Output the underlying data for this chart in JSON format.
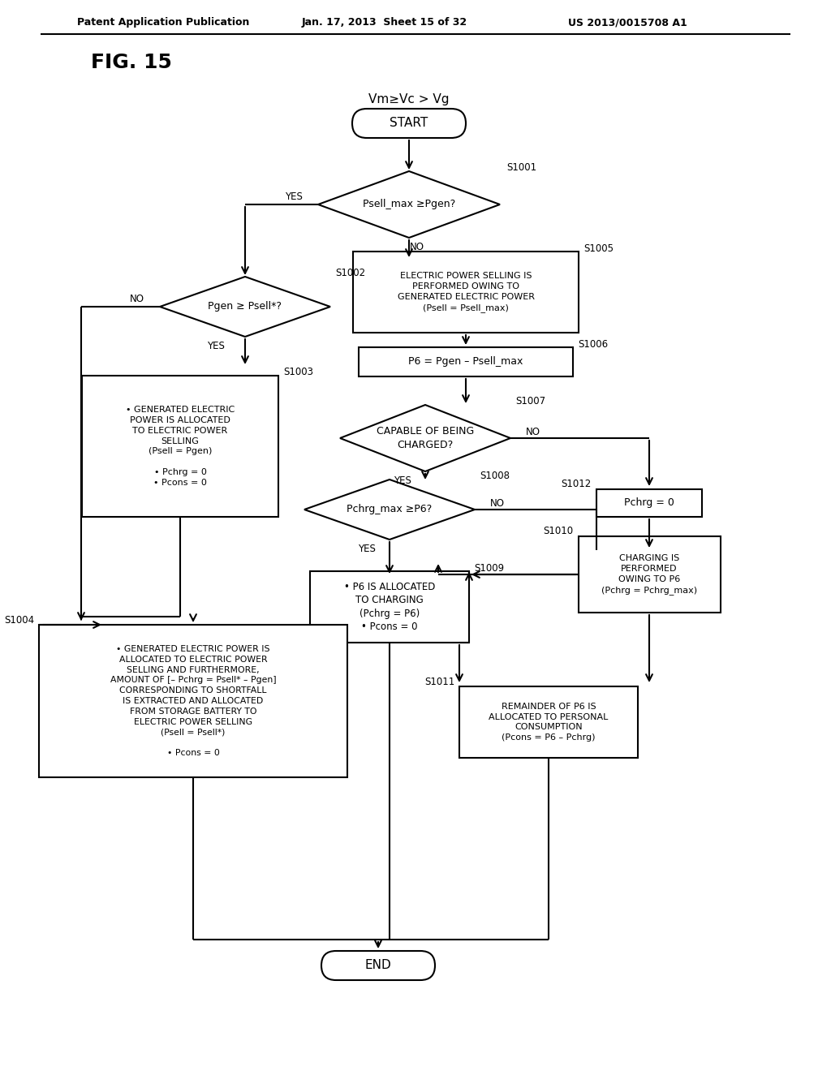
{
  "bg_color": "#ffffff",
  "header_left": "Patent Application Publication",
  "header_mid": "Jan. 17, 2013  Sheet 15 of 32",
  "header_right": "US 2013/0015708 A1",
  "fig_label": "FIG. 15",
  "formula": "Vm≥Vc > Vg"
}
